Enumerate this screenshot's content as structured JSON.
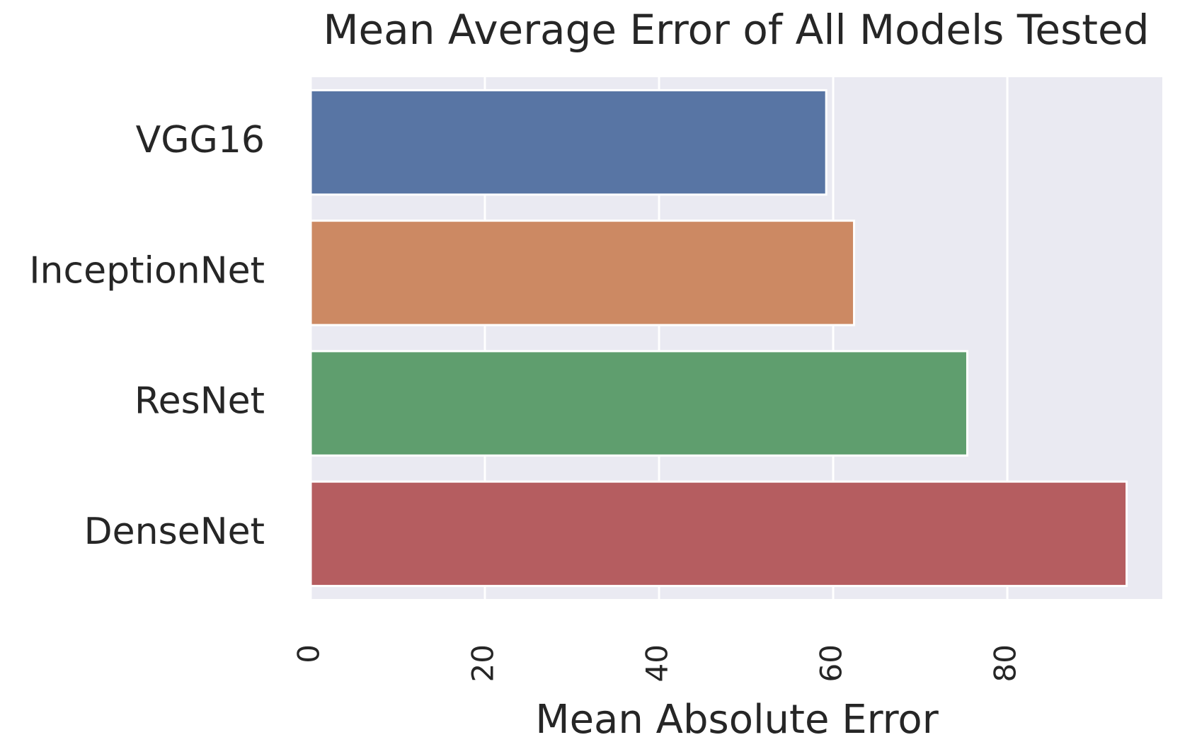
{
  "chart_data": {
    "type": "barh",
    "title": "Mean Average Error of All Models Tested",
    "x_label": "Mean Absolute Error",
    "categories": [
      "VGG16",
      "InceptionNet",
      "ResNet",
      "DenseNet"
    ],
    "values": [
      59.2,
      62.4,
      75.4,
      93.7
    ],
    "colors": [
      "#5875a4",
      "#cc8963",
      "#5f9e6e",
      "#b55d60"
    ],
    "xlim": [
      0,
      97.8
    ],
    "xticks": [
      0,
      20,
      40,
      60,
      80
    ],
    "grid": true
  }
}
